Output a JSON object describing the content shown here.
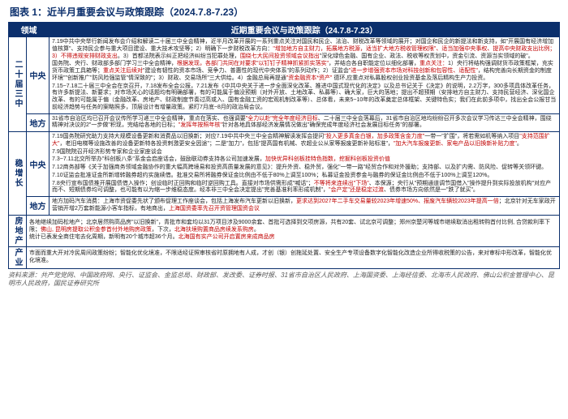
{
  "title": "图表 1：近半月重要会议与政策跟踪（2024.7.8-7.23）",
  "headers": {
    "col1": "领域",
    "col2": "近期重要会议与政策跟踪（24.7.8-7.23）"
  },
  "groups": [
    {
      "name": "二十届三中",
      "rows": [
        {
          "label": "中央",
          "paras": [
            {
              "seg": [
                {
                  "t": "7.19中共中央举行新闻发布会介绍和解读二十届三中全会精神，",
                  "r": false
                },
                {
                  "t": "近半月改革开展的一系列",
                  "r": false
                },
                {
                  "t": "重点关注对国民和民企、法治、财税改革等领域的展开；对国企和民企的新提法和新支持，如\"开展国有经济增加值核算\"、支持民企参与重大项目建设、重大技术攻坚等；",
                  "r": false
                },
                {
                  "t": "2）明确下一步财税改革方向：",
                  "r": false
                },
                {
                  "t": "\"增加地方自主财力，拓展地方税源，适当扩大地方税收管理权限\"、适当加强中央事权、提高中央财政支出比例；3）不得违规安排财政支出",
                  "r": true
                },
                {
                  "t": "。3）首都法院表示纠正把经济纠纷当犯罪处理，",
                  "r": false
                },
                {
                  "t": "围绕七大民间投资领域会议指出",
                  "r": true
                },
                {
                  "t": "\"深化绿色金融、国有企业、政法、税收等权责划中，资金引流、资源当实领域的破\"。",
                  "r": false
                }
              ]
            },
            {
              "seg": [
                {
                  "t": "国务院、央行、财政部多部门学习三中全会精神，",
                  "r": false
                },
                {
                  "t": "根据发现，各部门共同在对要求\"以钉钉子精神抓紧抓实落实\"",
                  "r": true
                },
                {
                  "t": "，并结合各自职能定位以细化部署，",
                  "r": false
                },
                {
                  "t": "重点关注：",
                  "r": true
                },
                {
                  "t": "1）央行将结构强调财货币政策框架，充实货币政策工具箱等；",
                  "r": false
                },
                {
                  "t": "重点关注后续对",
                  "r": true
                },
                {
                  "t": "\"建设有韧性的资本市场、竞争力、普惠性的现代中央体系\"的系列动作；2）证监会",
                  "r": false
                },
                {
                  "t": "\"进一步增强资本市场对科技创新和包容性、适配性\"",
                  "r": true
                },
                {
                  "t": "，结构完善向长期资金的制度环境\"\"创新推广\"防风险强监管\"情深致的\"；3）财政、交易场所\"三大供给。4）金融总局再提通",
                  "r": false
                },
                {
                  "t": "\"资金融资本*资产\"",
                  "r": true
                },
                {
                  "t": " 德环,应重点对私募股权创业投资基金及落后精构生产力投资。",
                  "r": false
                }
              ]
            },
            {
              "seg": [
                {
                  "t": "7.15~7.18二十届三中全会在京召开，7.18发布全会公报，7.21发布《中共中央关于进一步全面深化改革、推进中国式现代化的决定》以及总书记关于《决定》的说明，2.2万字，300多项具体改革任务，有许多新提法、新要求；对市场关心的话题均有明确部署，有的可能属于偏没预期（对外开放、土地改革、私募等）、确大家，巨大的落地；提出不超预期（安排地方自主财力、支持民营经济、深化国企改革、有的可能属于偏（金融改革、房地产、财政制度节奏过高或入、国有金融工资的宏观机制改革等）、总体看，未来5~10年的改革奠定总体框架、关键特色实；我们在此前多项中，找出全会公报甘当前经济趋势与任务的案略照多，顶层设计有增量政策。紧盯7月底~8月的政治局会议。",
                  "r": false
                }
              ]
            }
          ]
        },
        {
          "label": "地方",
          "paras": [
            {
              "seg": [
                {
                  "t": "31省市自治区均已召开会议传所学习递三中全会精神，重点在落实、也强调要",
                  "r": false
                },
                {
                  "t": "\"全力以赴\"完全年度经济目标",
                  "r": true
                },
                {
                  "t": "、二十届三中全会落幕后，31省市自治区地均纷纷召开多次会议学习传达三中全会精神，围绕精神对决议的2\"一步做\"积现，完结给各地的日标；",
                  "r": false
                },
                {
                  "t": "\"发挥年按照年核\"",
                  "r": true
                },
                {
                  "t": "针对各地具体部经济发展情况做出\"确保完成年度经济社会发展目标任务\"的部署。",
                  "r": false
                }
              ]
            }
          ]
        }
      ]
    },
    {
      "name": "稳增长",
      "rows": [
        {
          "label": "中央",
          "paras": [
            {
              "seg": [
                {
                  "t": "7.19国务院研究助力支持大规模设备更新和消费品以旧换新；对应7.19中共中央三中全会精神解读发挥会提问",
                  "r": false
                },
                {
                  "t": "\"投入更多真金白银，加多政策含金力度\"",
                  "r": true
                },
                {
                  "t": "一带一\"扩围\"，将若需如机等纳入项目",
                  "r": false
                },
                {
                  "t": "\"支持范围扩大\"",
                  "r": true
                },
                {
                  "t": "，老旧电梯等设施改善的设备更新特各投资刺激更安全因途\"；二是\"加力\"，包括\"提高国有机械、农超业公从家等报废更新补贴标准\"，",
                  "r": false
                },
                {
                  "t": "\"加大汽车报废更新、家电产品以旧换新补贴力度\"",
                  "r": true
                },
                {
                  "t": "。",
                  "r": false
                }
              ]
            },
            {
              "seg": [
                {
                  "t": "7.9国院院召开经济形势专家和企业家座谈会",
                  "r": false
                }
              ]
            },
            {
              "seg": [
                {
                  "t": "7.3~7.11北交所举办\"科创板八条\"系金会启座话会，鼓励联动券支持各公司加速发展，",
                  "r": false
                },
                {
                  "t": "加快优异科创板挂特色指数，挖掘科创板投资价值",
                  "r": true
                }
              ]
            },
            {
              "seg": [
                {
                  "t": "7.12商务部等《关于加强商务领域金融协作的重大幅高跨境易和投资高质量发展的意见》：提升外资、稳外贸，强化\"一带一路\"经贸合作和对外援助；支持部、以及扩内需、防风险、促转等关领环键。",
                  "r": false
                }
              ]
            },
            {
              "seg": [
                {
                  "t": "7.10证监会批准证金所新增转融券超约实施续借。批准交易所将融券保证金比例由不低于80%上调至100%；私募证金投资参金与融券的保证金比例由不低于100%上调至120%。",
                  "r": false
                }
              ]
            },
            {
              "seg": [
                {
                  "t": "7.8央行宣布国债推开展国债借入操作；创设临时正回购和临时逆回购工具。直接对市场供需形成\"喊话\"；",
                  "r": false
                },
                {
                  "t": "不等将来连续出\"下场\"",
                  "r": true
                },
                {
                  "t": "、本保源；央行从\"预期通道调节国借入\"操作提升到实际投放机构\"对应产而不、短期债券均可调整，也可能有以为缩一步维稳态度。经本非三中全会决定提出\"完善基准利率形成机制\"，",
                  "r": false
                },
                {
                  "t": "\"会产定\"还是稳定过渡",
                  "r": true
                },
                {
                  "t": "、债券市场方向依然是一\"跌了就买\"。",
                  "r": false
                }
              ]
            }
          ]
        },
        {
          "label": "地方",
          "paras": [
            {
              "seg": [
                {
                  "t": "地方加码汽车消费：上海市资促委先状了颁布促理工作座谈会，包括上海发布汽车更新以旧换新，",
                  "r": false
                },
                {
                  "t": "更求达到2027年二手车交易量较2023年增速50%、报废汽车辆较2023年提高一倍",
                  "r": true
                },
                {
                  "t": "；北京针对无车家政开营销开增2万套新能源小客车指标，有地商出，",
                  "r": false
                },
                {
                  "t": "上海国资委率先召开资管理国资会议",
                  "r": true
                }
              ]
            }
          ]
        }
      ]
    },
    {
      "name": "房地产",
      "rows": [
        {
          "label": "",
          "paras": [
            {
              "seg": [
                {
                  "t": "各地继续加码松地产；北京居然购高品房\"以旧换新\"，青批市和套均以31万项目涉及9000余套、首批可选择到交项房源，共有20套、试北京可调整；郑州京楚河等城市继续取消出租转购首付比例, 合贷款利率下限；",
                  "r": false
                },
                {
                  "t": "佛山, 昆明房提取公积金参首付外地购房政策",
                  "r": true
                },
                {
                  "t": "，下次，",
                  "r": false
                },
                {
                  "t": "北海扶境购置商品房续发系购房",
                  "r": true
                },
                {
                  "t": "。",
                  "r": false
                }
              ]
            },
            {
              "seg": [
                {
                  "t": "统计已表发全商住宅去化周期，新明有20个城市超36个月。",
                  "r": false
                },
                {
                  "t": "北海国有实产公司开启置房来成商品房",
                  "r": true
                }
              ]
            }
          ]
        }
      ]
    },
    {
      "name": "产业",
      "rows": [
        {
          "label": "",
          "paras": [
            {
              "seg": [
                {
                  "t": "市面而重大开对冷民周间政策纷纷；智能化优化境准，不限适经证照审核省时原拥地有人成，才创（银）创拖延处置、安全生产专项设备数字化智能化改造企业所得收税策的公告，来对审标中形改革，智能化优化境准。",
                  "r": false
                }
              ]
            }
          ]
        }
      ]
    }
  ],
  "source": "资料来源：共产党党网、中国政府网、央行、证监会、金监总局、财政部、发改委、证券时报、31省市自治区人民政府、上海国资委、上海经信委、北海市人民政府、佛山公积金管理中心、昆明市人民政府，国民证券研究所"
}
